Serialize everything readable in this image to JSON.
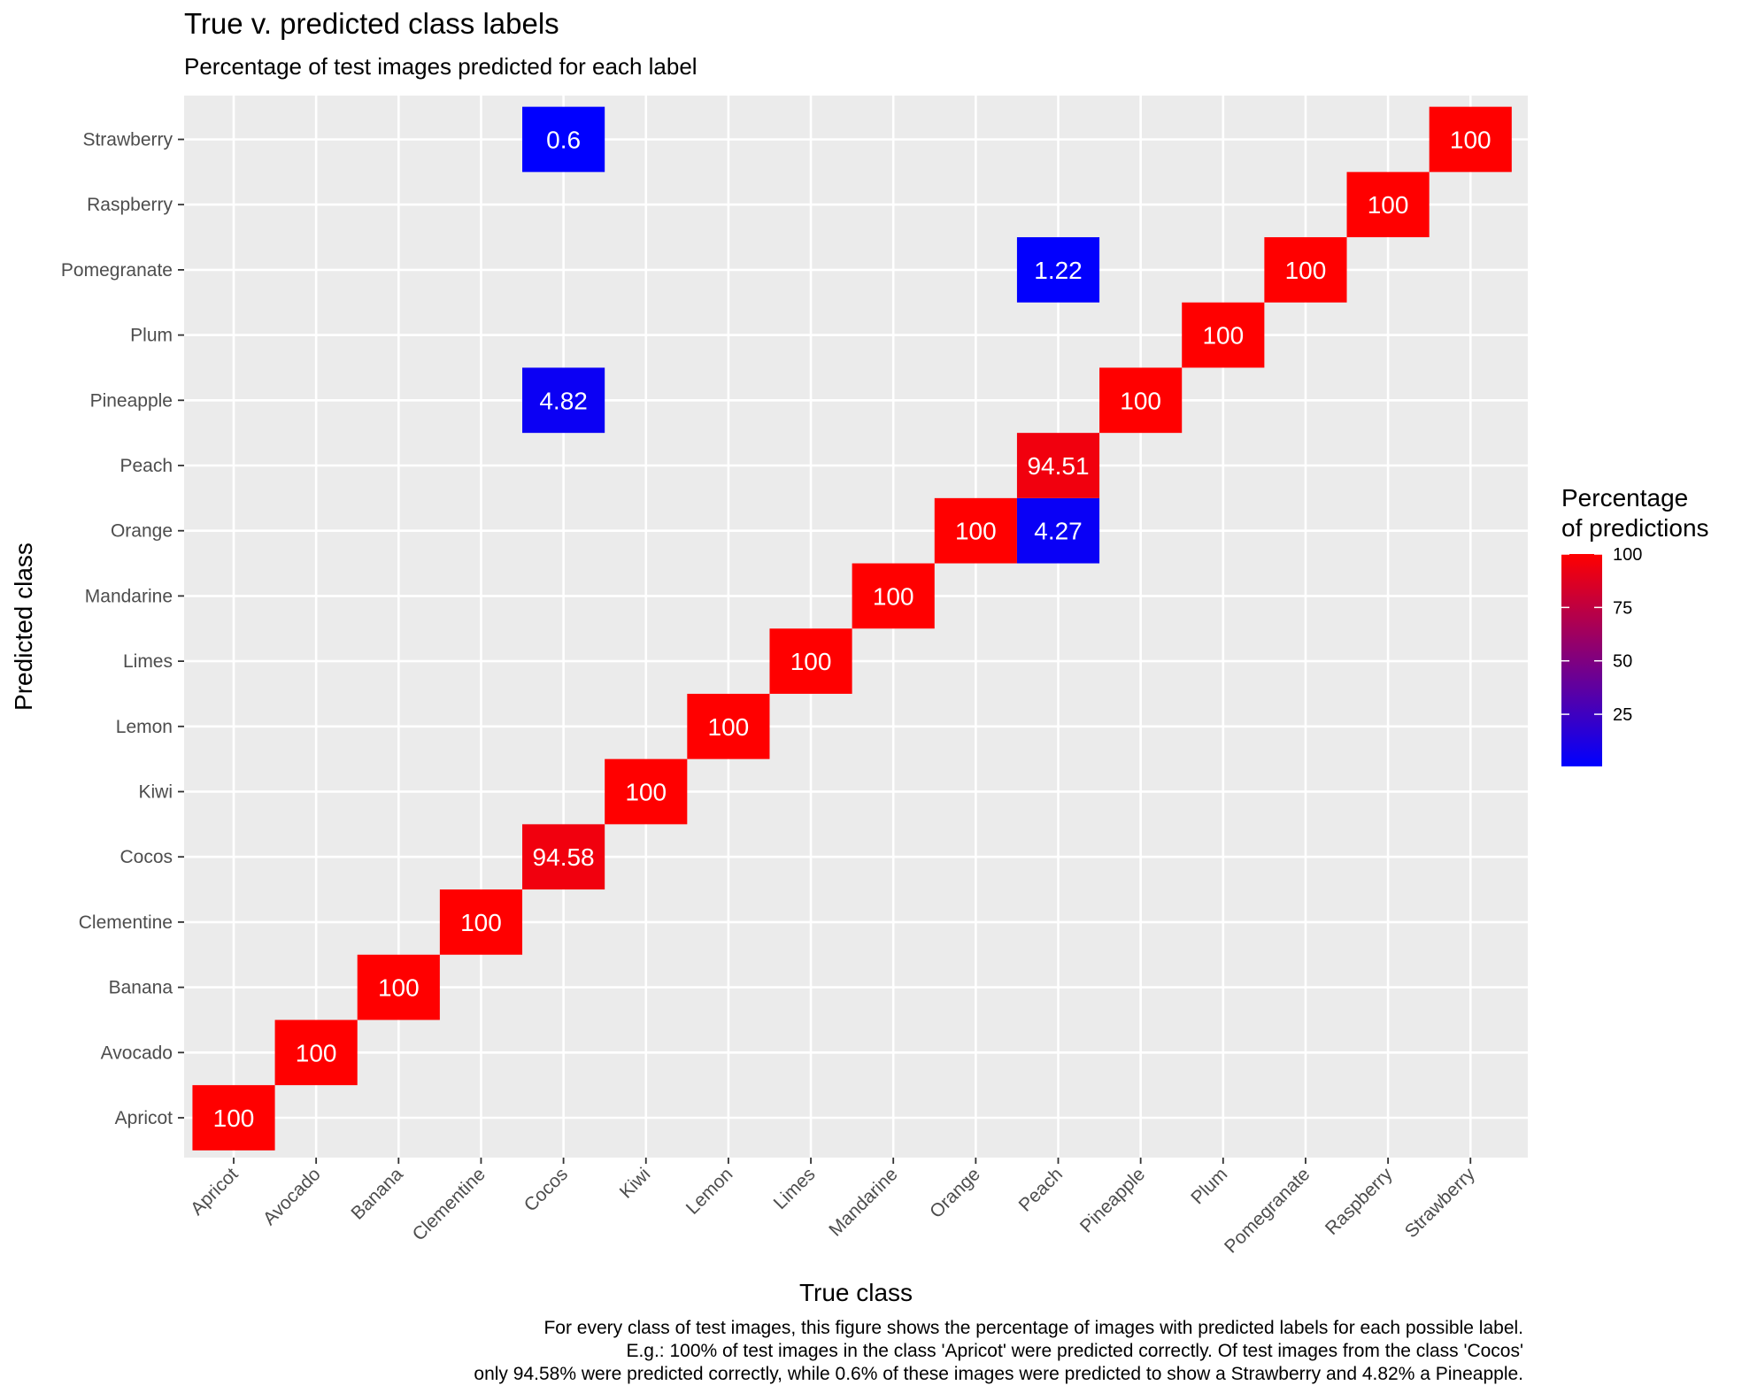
{
  "chart_data": {
    "type": "heatmap",
    "title": "True v. predicted class labels",
    "subtitle": "Percentage of test images predicted for each label",
    "xlabel": "True class",
    "ylabel": "Predicted class",
    "x_categories": [
      "Apricot",
      "Avocado",
      "Banana",
      "Clementine",
      "Cocos",
      "Kiwi",
      "Lemon",
      "Limes",
      "Mandarine",
      "Orange",
      "Peach",
      "Pineapple",
      "Plum",
      "Pomegranate",
      "Raspberry",
      "Strawberry"
    ],
    "y_categories": [
      "Apricot",
      "Avocado",
      "Banana",
      "Clementine",
      "Cocos",
      "Kiwi",
      "Lemon",
      "Limes",
      "Mandarine",
      "Orange",
      "Peach",
      "Pineapple",
      "Plum",
      "Pomegranate",
      "Raspberry",
      "Strawberry"
    ],
    "cells": [
      {
        "x": "Apricot",
        "y": "Apricot",
        "value": 100,
        "label": "100"
      },
      {
        "x": "Avocado",
        "y": "Avocado",
        "value": 100,
        "label": "100"
      },
      {
        "x": "Banana",
        "y": "Banana",
        "value": 100,
        "label": "100"
      },
      {
        "x": "Clementine",
        "y": "Clementine",
        "value": 100,
        "label": "100"
      },
      {
        "x": "Cocos",
        "y": "Cocos",
        "value": 94.58,
        "label": "94.58"
      },
      {
        "x": "Cocos",
        "y": "Pineapple",
        "value": 4.82,
        "label": "4.82"
      },
      {
        "x": "Cocos",
        "y": "Strawberry",
        "value": 0.6,
        "label": "0.6"
      },
      {
        "x": "Kiwi",
        "y": "Kiwi",
        "value": 100,
        "label": "100"
      },
      {
        "x": "Lemon",
        "y": "Lemon",
        "value": 100,
        "label": "100"
      },
      {
        "x": "Limes",
        "y": "Limes",
        "value": 100,
        "label": "100"
      },
      {
        "x": "Mandarine",
        "y": "Mandarine",
        "value": 100,
        "label": "100"
      },
      {
        "x": "Orange",
        "y": "Orange",
        "value": 100,
        "label": "100"
      },
      {
        "x": "Peach",
        "y": "Orange",
        "value": 4.27,
        "label": "4.27"
      },
      {
        "x": "Peach",
        "y": "Peach",
        "value": 94.51,
        "label": "94.51"
      },
      {
        "x": "Peach",
        "y": "Pomegranate",
        "value": 1.22,
        "label": "1.22"
      },
      {
        "x": "Pineapple",
        "y": "Pineapple",
        "value": 100,
        "label": "100"
      },
      {
        "x": "Plum",
        "y": "Plum",
        "value": 100,
        "label": "100"
      },
      {
        "x": "Pomegranate",
        "y": "Pomegranate",
        "value": 100,
        "label": "100"
      },
      {
        "x": "Raspberry",
        "y": "Raspberry",
        "value": 100,
        "label": "100"
      },
      {
        "x": "Strawberry",
        "y": "Strawberry",
        "value": 100,
        "label": "100"
      }
    ],
    "legend": {
      "title_lines": [
        "Percentage",
        "of predictions"
      ],
      "ticks": [
        100,
        75,
        50,
        25
      ],
      "tick_labels": [
        "100",
        "75",
        "50",
        "25"
      ],
      "range": [
        0.6,
        100
      ],
      "low_color": "#0000ff",
      "high_color": "#ff0000",
      "placement": "right"
    },
    "colors": {
      "panel_background": "#ebebeb",
      "grid": "#ffffff",
      "cell_text": "#ffffff"
    },
    "grid": true
  },
  "caption_lines": [
    "For every class of test images, this figure shows the percentage of images with predicted labels for each possible label.",
    "E.g.: 100% of test images in the class 'Apricot' were predicted correctly. Of test images from the class 'Cocos'",
    "only 94.58% were predicted correctly, while 0.6% of these images were predicted to show a Strawberry and 4.82% a Pineapple."
  ]
}
